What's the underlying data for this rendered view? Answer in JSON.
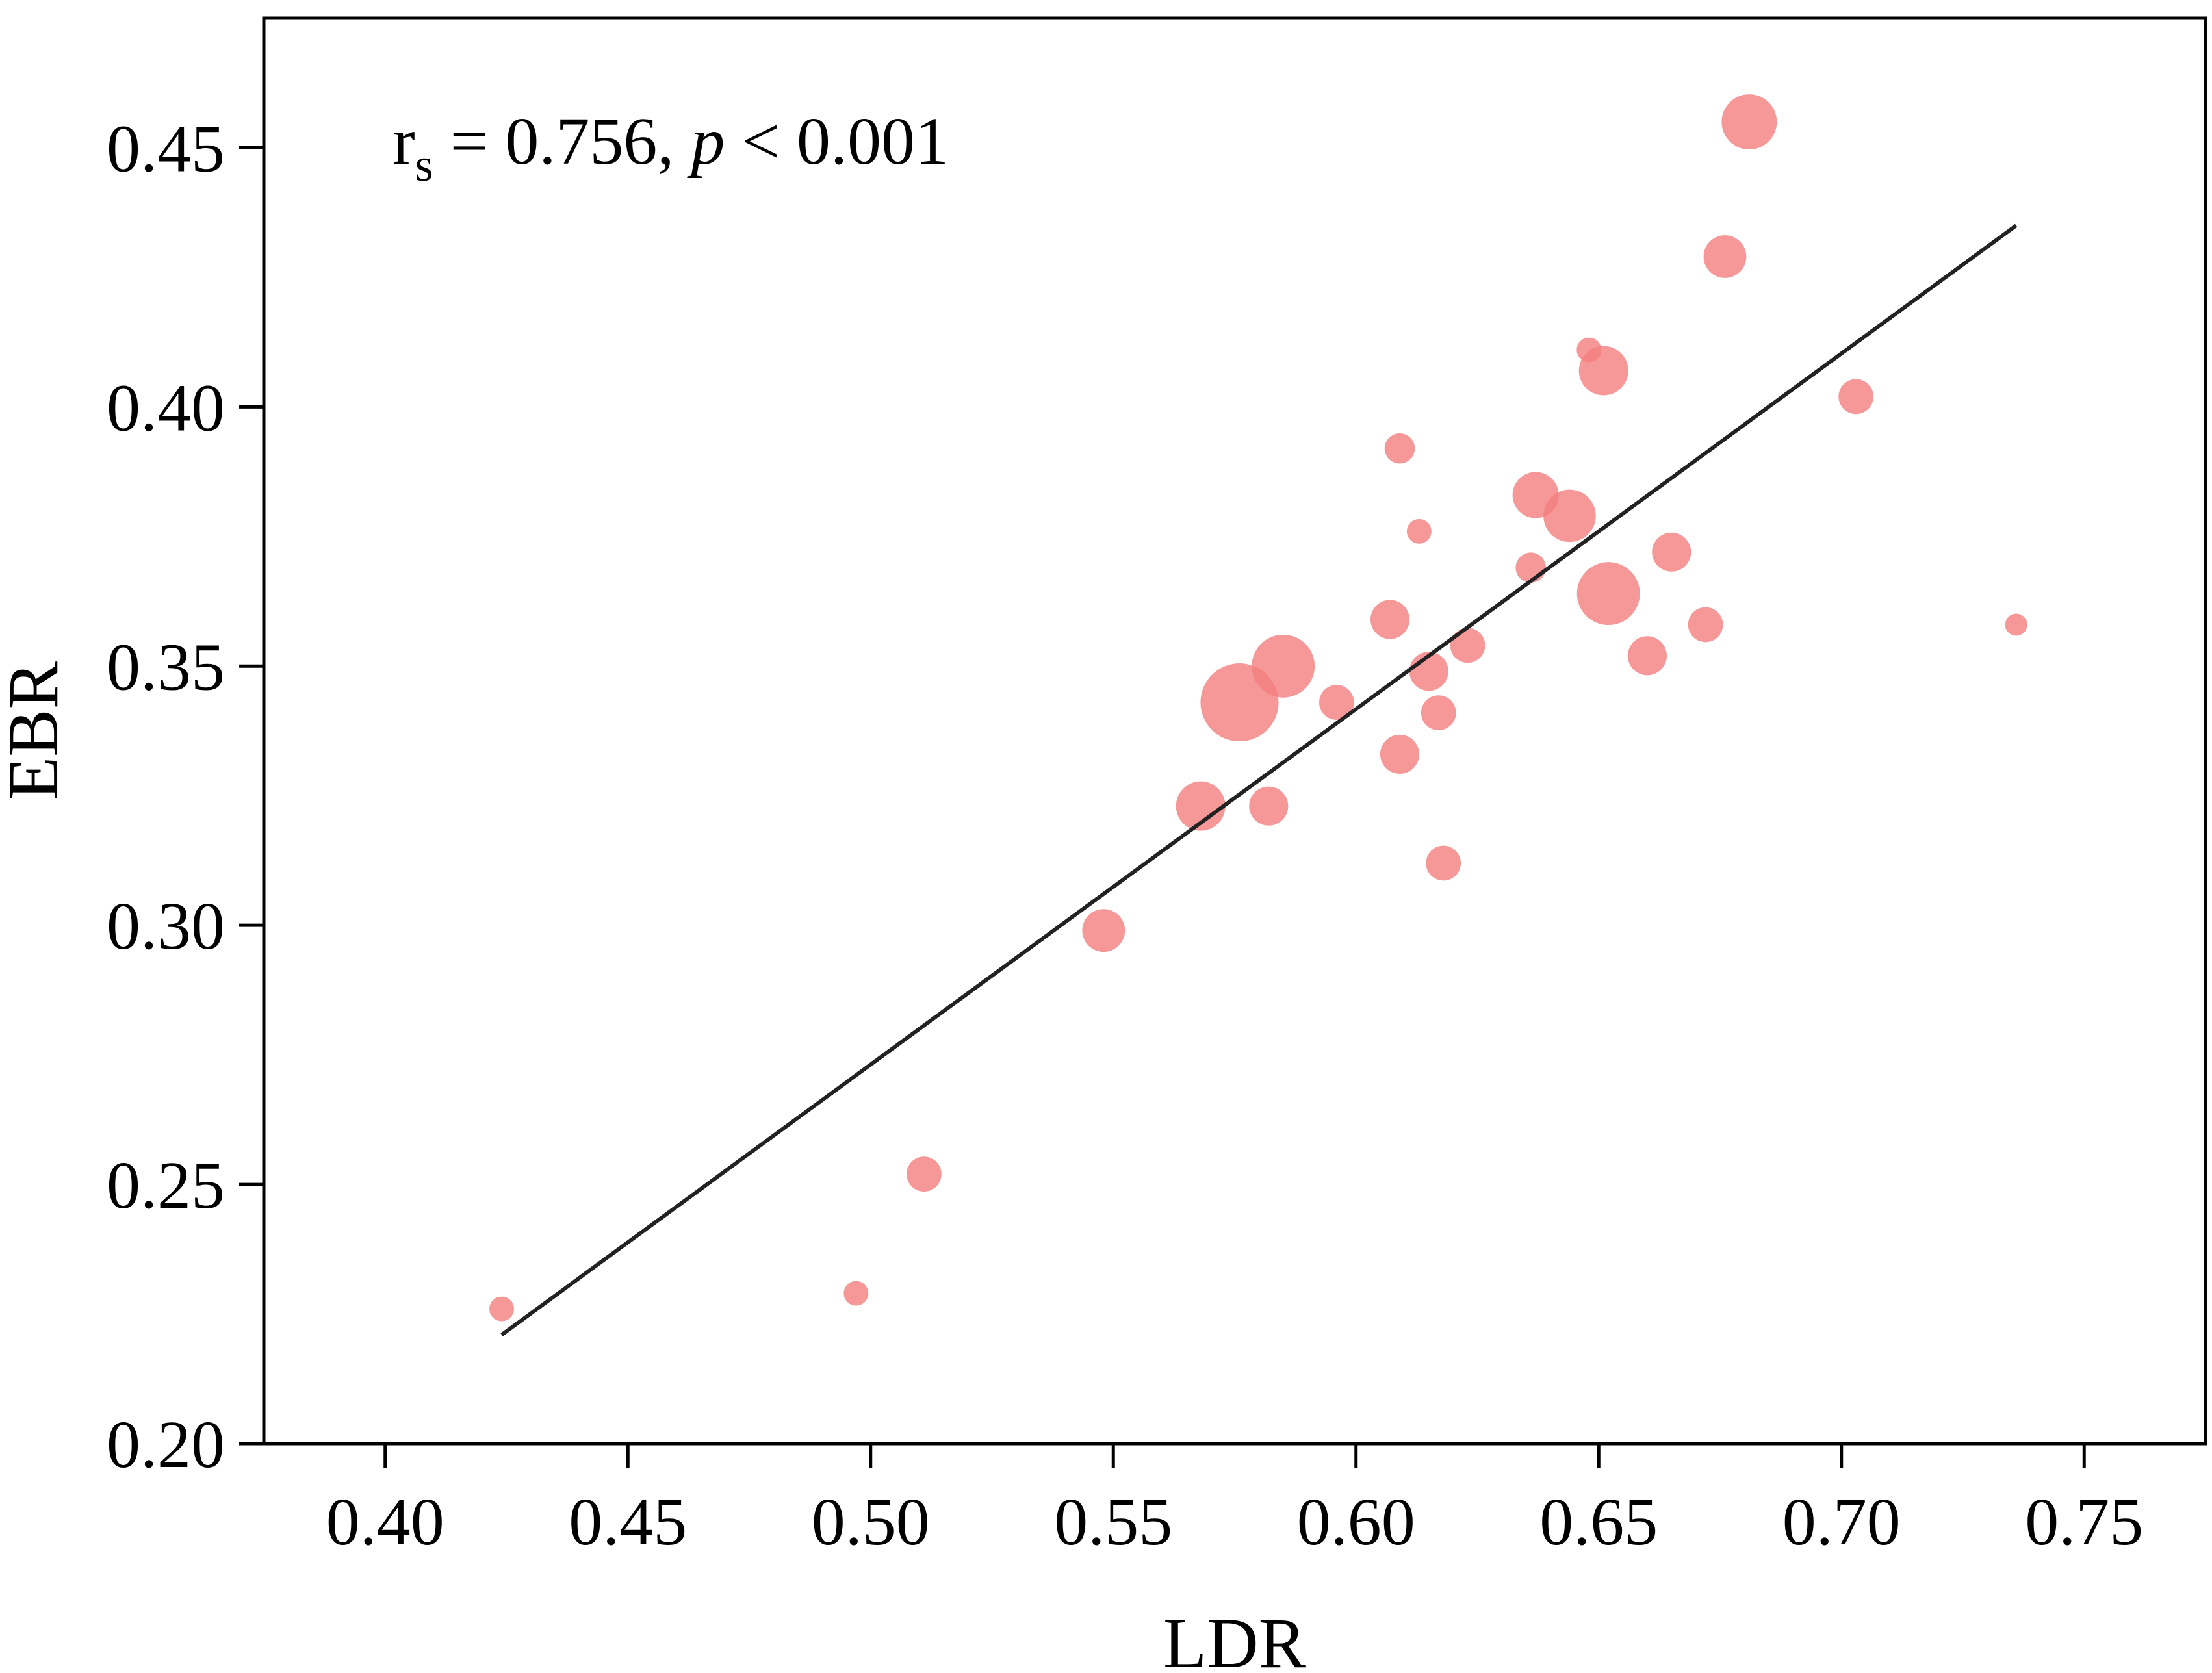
{
  "chart_data": {
    "type": "scatter",
    "xlabel": "LDR",
    "ylabel": "EBR",
    "xlim": [
      0.375,
      0.775
    ],
    "ylim": [
      0.2,
      0.475
    ],
    "x_ticks": [
      0.4,
      0.45,
      0.5,
      0.55,
      0.6,
      0.65,
      0.7,
      0.75
    ],
    "y_ticks": [
      0.2,
      0.25,
      0.3,
      0.35,
      0.4,
      0.45
    ],
    "x_tick_labels": [
      "0.40",
      "0.45",
      "0.50",
      "0.55",
      "0.60",
      "0.65",
      "0.70",
      "0.75"
    ],
    "y_tick_labels": [
      "0.20",
      "0.25",
      "0.30",
      "0.35",
      "0.40",
      "0.45"
    ],
    "grid": false,
    "marker_color": "#f47e7e",
    "marker_opacity": 0.8,
    "line_color": "#222222",
    "annotation": {
      "r_symbol": "r",
      "r_subscript": "s",
      "equals_text": " = 0.756, ",
      "p_symbol": "p",
      "p_text": " < 0.001"
    },
    "fit_line": {
      "x": [
        0.424,
        0.736
      ],
      "y": [
        0.221,
        0.435
      ]
    },
    "points": [
      {
        "x": 0.424,
        "y": 0.226,
        "size": 1
      },
      {
        "x": 0.497,
        "y": 0.229,
        "size": 1
      },
      {
        "x": 0.511,
        "y": 0.252,
        "size": 2
      },
      {
        "x": 0.548,
        "y": 0.299,
        "size": 3
      },
      {
        "x": 0.568,
        "y": 0.323,
        "size": 4
      },
      {
        "x": 0.576,
        "y": 0.343,
        "size": 10
      },
      {
        "x": 0.582,
        "y": 0.323,
        "size": 2.5
      },
      {
        "x": 0.585,
        "y": 0.35,
        "size": 6.5
      },
      {
        "x": 0.596,
        "y": 0.343,
        "size": 2
      },
      {
        "x": 0.607,
        "y": 0.359,
        "size": 2.5
      },
      {
        "x": 0.609,
        "y": 0.333,
        "size": 2.5
      },
      {
        "x": 0.609,
        "y": 0.392,
        "size": 1.5
      },
      {
        "x": 0.613,
        "y": 0.376,
        "size": 1
      },
      {
        "x": 0.615,
        "y": 0.349,
        "size": 2.5
      },
      {
        "x": 0.617,
        "y": 0.341,
        "size": 2
      },
      {
        "x": 0.618,
        "y": 0.312,
        "size": 2
      },
      {
        "x": 0.623,
        "y": 0.354,
        "size": 2
      },
      {
        "x": 0.636,
        "y": 0.369,
        "size": 1.5
      },
      {
        "x": 0.637,
        "y": 0.383,
        "size": 3.5
      },
      {
        "x": 0.644,
        "y": 0.379,
        "size": 4.5
      },
      {
        "x": 0.648,
        "y": 0.411,
        "size": 1
      },
      {
        "x": 0.651,
        "y": 0.407,
        "size": 4
      },
      {
        "x": 0.652,
        "y": 0.364,
        "size": 6.5
      },
      {
        "x": 0.66,
        "y": 0.352,
        "size": 2.5
      },
      {
        "x": 0.665,
        "y": 0.372,
        "size": 2.5
      },
      {
        "x": 0.672,
        "y": 0.358,
        "size": 2
      },
      {
        "x": 0.676,
        "y": 0.429,
        "size": 3
      },
      {
        "x": 0.681,
        "y": 0.455,
        "size": 5
      },
      {
        "x": 0.703,
        "y": 0.402,
        "size": 2
      },
      {
        "x": 0.736,
        "y": 0.358,
        "size": 0.8
      }
    ]
  }
}
